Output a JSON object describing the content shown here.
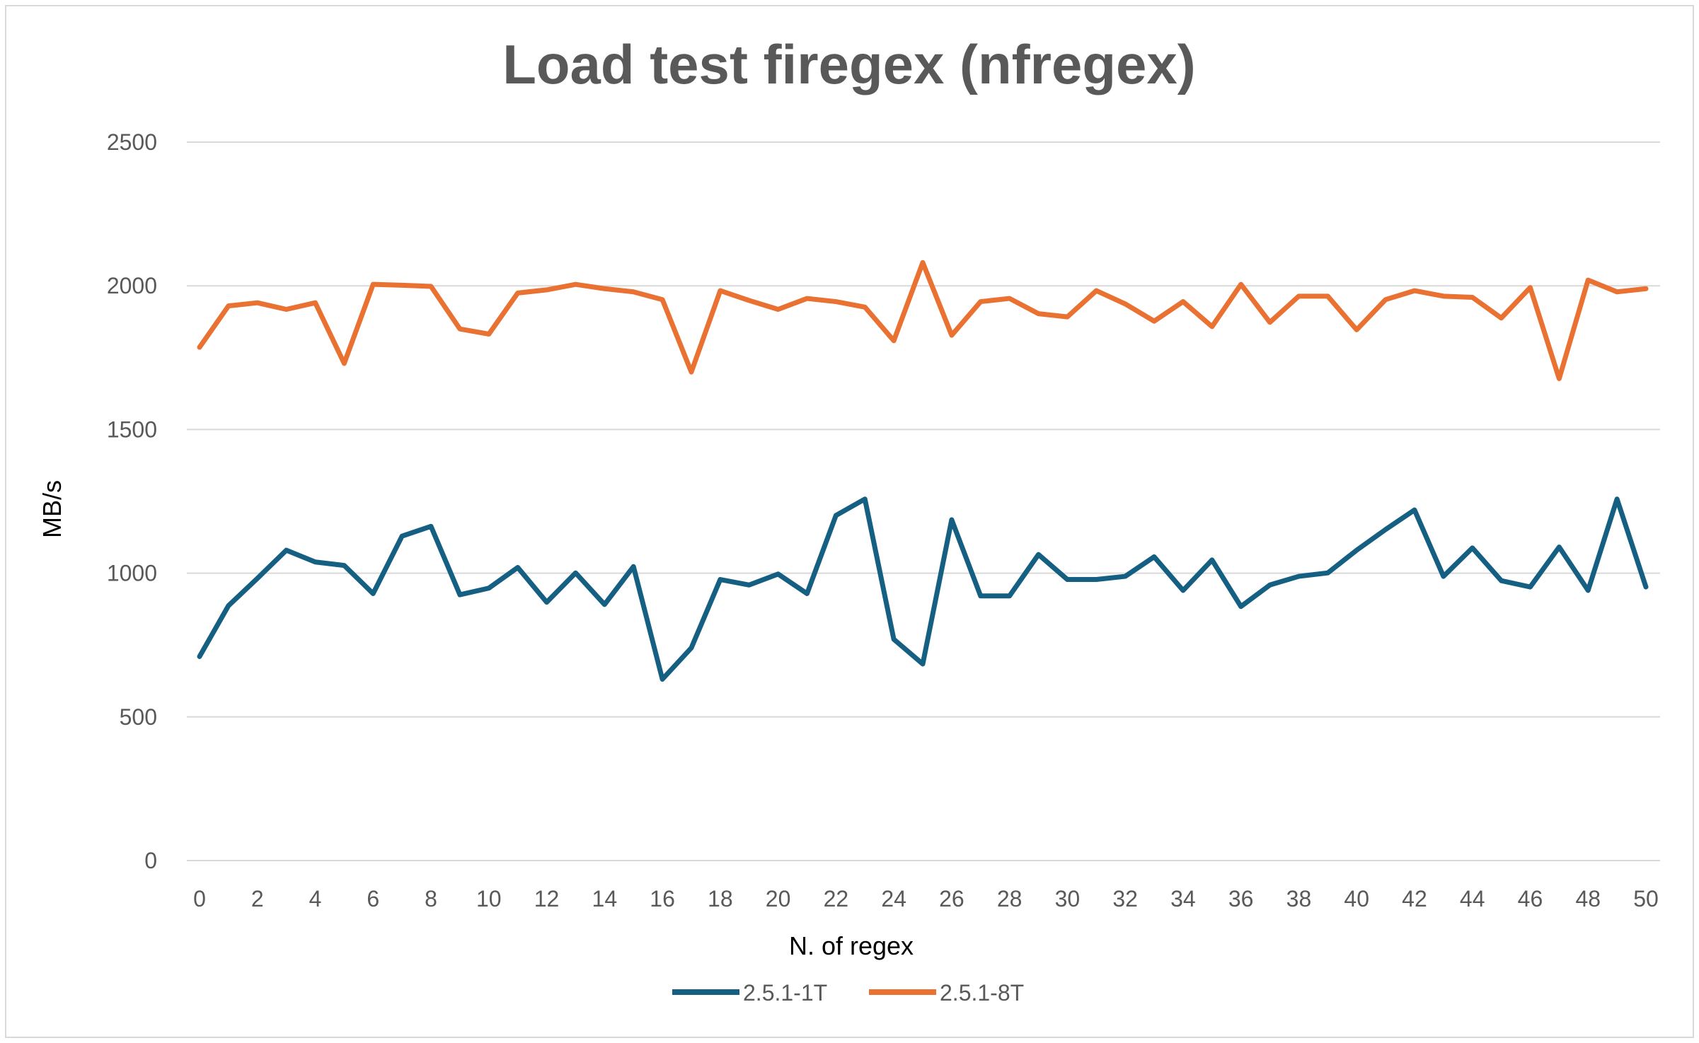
{
  "chart_data": {
    "type": "line",
    "title": "Load test firegex (nfregex)",
    "xlabel": "N. of regex",
    "ylabel": "MB/s",
    "xlim": [
      0,
      50
    ],
    "ylim": [
      0,
      2500
    ],
    "yticks": [
      0,
      500,
      1000,
      1500,
      2000,
      2500
    ],
    "xticks": [
      0,
      2,
      4,
      6,
      8,
      10,
      12,
      14,
      16,
      18,
      20,
      22,
      24,
      26,
      28,
      30,
      32,
      34,
      36,
      38,
      40,
      42,
      44,
      46,
      48,
      50
    ],
    "grid": "horizontal",
    "legend_position": "bottom",
    "x": [
      0,
      1,
      2,
      3,
      4,
      5,
      6,
      7,
      8,
      9,
      10,
      11,
      12,
      13,
      14,
      15,
      16,
      17,
      18,
      19,
      20,
      21,
      22,
      23,
      24,
      25,
      26,
      27,
      28,
      29,
      30,
      31,
      32,
      33,
      34,
      35,
      36,
      37,
      38,
      39,
      40,
      41,
      42,
      43,
      44,
      45,
      46,
      47,
      48,
      49,
      50
    ],
    "series": [
      {
        "name": "2.5.1-1T",
        "color": "#156082",
        "values": [
          710,
          887,
          982,
          1080,
          1039,
          1027,
          929,
          1129,
          1163,
          925,
          948,
          1020,
          899,
          1001,
          891,
          1023,
          631,
          740,
          978,
          959,
          997,
          929,
          1201,
          1258,
          770,
          684,
          1186,
          921,
          921,
          1065,
          978,
          978,
          989,
          1057,
          940,
          1046,
          884,
          959,
          989,
          1001,
          1080,
          1152,
          1220,
          989,
          1088,
          974,
          952,
          1091,
          940,
          1258,
          952
        ]
      },
      {
        "name": "2.5.1-8T",
        "color": "#E97132",
        "values": [
          1786,
          1930,
          1941,
          1918,
          1941,
          1730,
          2005,
          2002,
          1998,
          1850,
          1832,
          1975,
          1986,
          2005,
          1990,
          1979,
          1952,
          1700,
          1983,
          1949,
          1918,
          1956,
          1945,
          1926,
          1809,
          2081,
          1828,
          1945,
          1956,
          1903,
          1892,
          1983,
          1937,
          1877,
          1945,
          1858,
          2005,
          1873,
          1964,
          1964,
          1847,
          1952,
          1983,
          1964,
          1960,
          1888,
          1994,
          1677,
          2020,
          1979,
          1990
        ]
      }
    ]
  }
}
